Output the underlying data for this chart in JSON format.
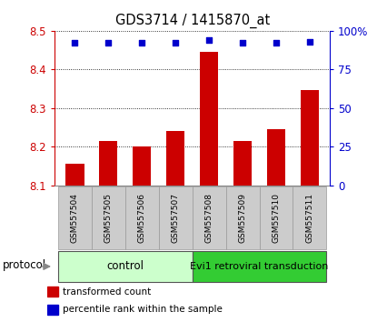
{
  "title": "GDS3714 / 1415870_at",
  "samples": [
    "GSM557504",
    "GSM557505",
    "GSM557506",
    "GSM557507",
    "GSM557508",
    "GSM557509",
    "GSM557510",
    "GSM557511"
  ],
  "transformed_counts": [
    8.155,
    8.215,
    8.2,
    8.24,
    8.445,
    8.215,
    8.245,
    8.345
  ],
  "percentile_ranks": [
    92,
    92,
    92,
    92,
    94,
    92,
    92,
    93
  ],
  "ylim_left": [
    8.1,
    8.5
  ],
  "ylim_right": [
    0,
    100
  ],
  "yticks_left": [
    8.1,
    8.2,
    8.3,
    8.4,
    8.5
  ],
  "yticks_right": [
    0,
    25,
    50,
    75,
    100
  ],
  "bar_color": "#cc0000",
  "dot_color": "#0000cc",
  "bar_width": 0.55,
  "grid_color": "#000000",
  "bg_color": "#ffffff",
  "plot_bg": "#ffffff",
  "control_label": "control",
  "treatment_label": "Evi1 retroviral transduction",
  "protocol_label": "protocol",
  "legend_bar": "transformed count",
  "legend_dot": "percentile rank within the sample",
  "left_label_color": "#cc0000",
  "right_label_color": "#0000cc",
  "control_bg": "#ccffcc",
  "treatment_bg": "#33cc33",
  "sample_bg": "#cccccc",
  "arrow_color": "#888888"
}
